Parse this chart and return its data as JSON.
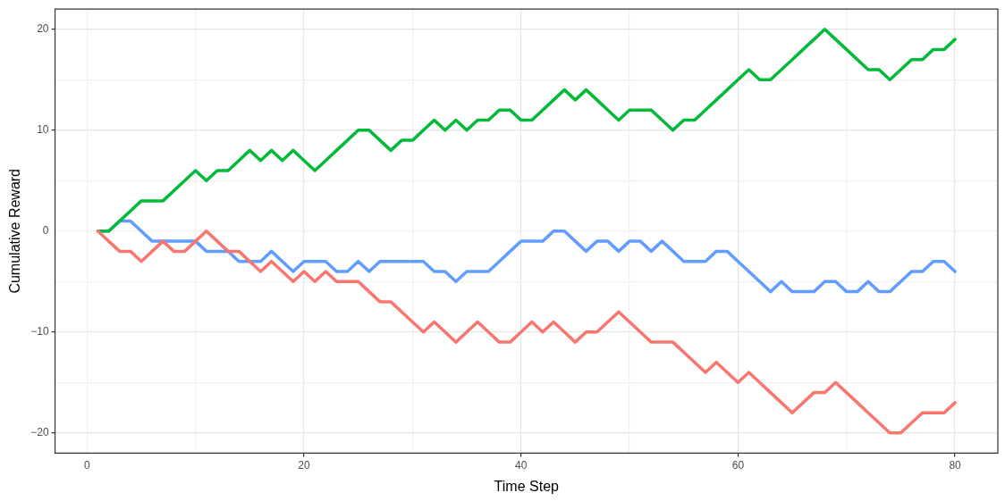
{
  "chart_data": {
    "type": "line",
    "xlabel": "Time Step",
    "ylabel": "Cumulative Reward",
    "x": [
      1,
      2,
      3,
      4,
      5,
      6,
      7,
      8,
      9,
      10,
      11,
      12,
      13,
      14,
      15,
      16,
      17,
      18,
      19,
      20,
      21,
      22,
      23,
      24,
      25,
      26,
      27,
      28,
      29,
      30,
      31,
      32,
      33,
      34,
      35,
      36,
      37,
      38,
      39,
      40,
      41,
      42,
      43,
      44,
      45,
      46,
      47,
      48,
      49,
      50,
      51,
      52,
      53,
      54,
      55,
      56,
      57,
      58,
      59,
      60,
      61,
      62,
      63,
      64,
      65,
      66,
      67,
      68,
      69,
      70,
      71,
      72,
      73,
      74,
      75,
      76,
      77,
      78,
      79,
      80
    ],
    "series": [
      {
        "color": "#f8766d",
        "values": [
          0,
          -1,
          -2,
          -2,
          -3,
          -2,
          -1,
          -2,
          -2,
          -1,
          0,
          -1,
          -2,
          -2,
          -3,
          -4,
          -3,
          -4,
          -5,
          -4,
          -5,
          -4,
          -5,
          -5,
          -5,
          -6,
          -7,
          -7,
          -8,
          -9,
          -10,
          -9,
          -10,
          -11,
          -10,
          -9,
          -10,
          -11,
          -11,
          -10,
          -9,
          -10,
          -9,
          -10,
          -11,
          -10,
          -10,
          -9,
          -8,
          -9,
          -10,
          -11,
          -11,
          -11,
          -12,
          -13,
          -14,
          -13,
          -14,
          -15,
          -14,
          -15,
          -16,
          -17,
          -18,
          -17,
          -16,
          -16,
          -15,
          -16,
          -17,
          -18,
          -19,
          -20,
          -20,
          -19,
          -18,
          -18,
          -18,
          -17
        ]
      },
      {
        "color": "#00ba38",
        "values": [
          0,
          0,
          1,
          2,
          3,
          3,
          3,
          4,
          5,
          6,
          5,
          6,
          6,
          7,
          8,
          7,
          8,
          7,
          8,
          7,
          6,
          7,
          8,
          9,
          10,
          10,
          9,
          8,
          9,
          9,
          10,
          11,
          10,
          11,
          10,
          11,
          11,
          12,
          12,
          11,
          11,
          12,
          13,
          14,
          13,
          14,
          13,
          12,
          11,
          12,
          12,
          12,
          11,
          10,
          11,
          11,
          12,
          13,
          14,
          15,
          16,
          15,
          15,
          16,
          17,
          18,
          19,
          20,
          19,
          18,
          17,
          16,
          16,
          15,
          16,
          17,
          17,
          18,
          18,
          19
        ]
      },
      {
        "color": "#619cff",
        "values": [
          0,
          0,
          1,
          1,
          0,
          -1,
          -1,
          -1,
          -1,
          -1,
          -2,
          -2,
          -2,
          -3,
          -3,
          -3,
          -2,
          -3,
          -4,
          -3,
          -3,
          -3,
          -4,
          -4,
          -3,
          -4,
          -3,
          -3,
          -3,
          -3,
          -3,
          -4,
          -4,
          -5,
          -4,
          -4,
          -4,
          -3,
          -2,
          -1,
          -1,
          -1,
          0,
          0,
          -1,
          -2,
          -1,
          -1,
          -2,
          -1,
          -1,
          -2,
          -1,
          -2,
          -3,
          -3,
          -3,
          -2,
          -2,
          -3,
          -4,
          -5,
          -6,
          -5,
          -6,
          -6,
          -6,
          -5,
          -5,
          -6,
          -6,
          -5,
          -6,
          -6,
          -5,
          -4,
          -4,
          -3,
          -3,
          -4
        ]
      }
    ],
    "xlim": [
      -2.95,
      83.95
    ],
    "xticks": [
      0,
      {
        "value": 10,
        "label": null
      },
      20,
      {
        "value": 30,
        "label": null
      },
      40,
      {
        "value": 50,
        "label": null
      },
      60,
      {
        "value": 70,
        "label": null
      },
      80
    ],
    "ylim": [
      -22,
      22
    ],
    "yticks": [
      {
        "value": -20,
        "label": "−20"
      },
      {
        "value": -15,
        "label": null
      },
      {
        "value": -10,
        "label": "−10"
      },
      {
        "value": -5,
        "label": null
      },
      0,
      {
        "value": 5,
        "label": null
      },
      10,
      {
        "value": 15,
        "label": null
      },
      20
    ],
    "grid": true,
    "legend": false,
    "marker": "none",
    "line_style": "solid"
  }
}
